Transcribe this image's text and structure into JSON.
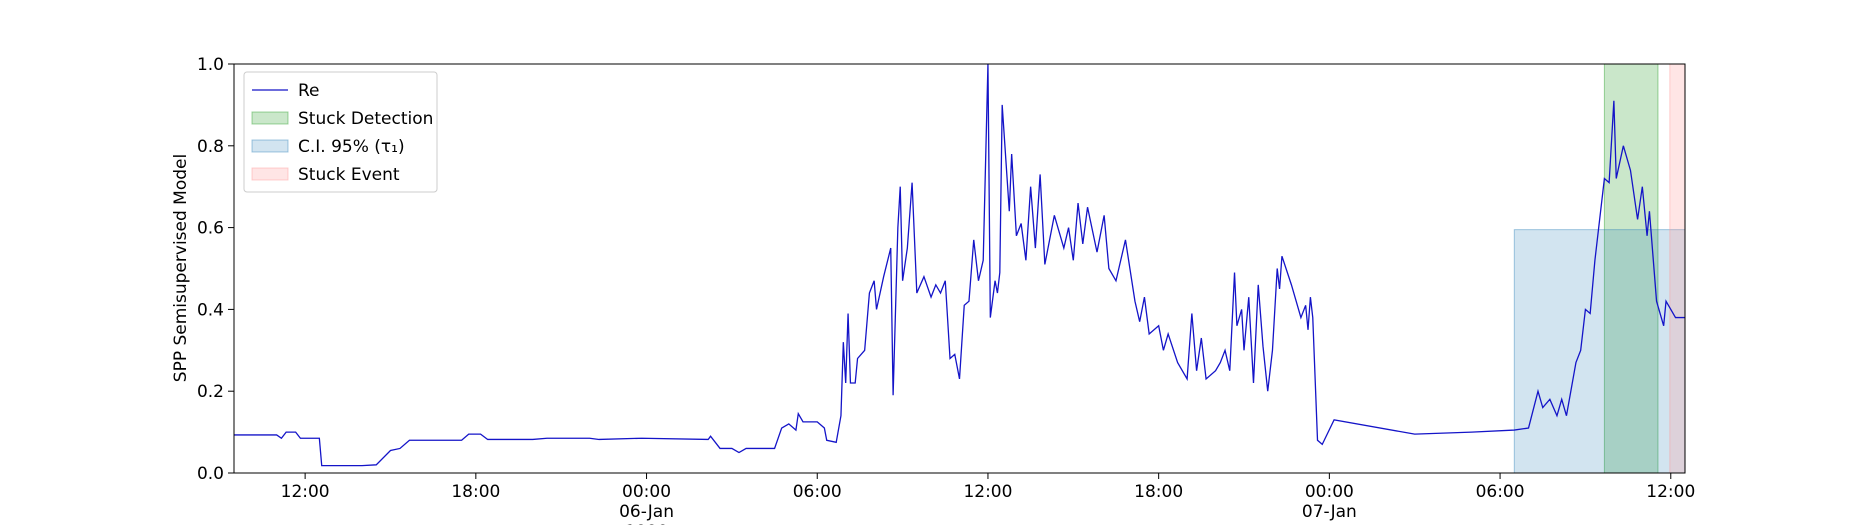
{
  "chart_data": {
    "type": "line",
    "ylabel": "SPP Semisupervised Model",
    "x": [
      "1990-01-05T09:30",
      "1990-01-05T11:00",
      "1990-01-05T11:10",
      "1990-01-05T11:20",
      "1990-01-05T11:40",
      "1990-01-05T11:50",
      "1990-01-05T12:30",
      "1990-01-05T12:35",
      "1990-01-05T14:00",
      "1990-01-05T14:30",
      "1990-01-05T15:00",
      "1990-01-05T15:20",
      "1990-01-05T15:40",
      "1990-01-05T17:30",
      "1990-01-05T17:45",
      "1990-01-05T18:10",
      "1990-01-05T18:25",
      "1990-01-05T20:00",
      "1990-01-05T20:30",
      "1990-01-05T22:00",
      "1990-01-05T22:20",
      "1990-01-05T23:50",
      "1990-01-06T02:10",
      "1990-01-06T02:15",
      "1990-01-06T02:35",
      "1990-01-06T03:00",
      "1990-01-06T03:15",
      "1990-01-06T03:30",
      "1990-01-06T04:30",
      "1990-01-06T04:45",
      "1990-01-06T05:00",
      "1990-01-06T05:15",
      "1990-01-06T05:20",
      "1990-01-06T05:30",
      "1990-01-06T06:00",
      "1990-01-06T06:15",
      "1990-01-06T06:20",
      "1990-01-06T06:40",
      "1990-01-06T06:50",
      "1990-01-06T06:55",
      "1990-01-06T07:00",
      "1990-01-06T07:05",
      "1990-01-06T07:10",
      "1990-01-06T07:20",
      "1990-01-06T07:25",
      "1990-01-06T07:40",
      "1990-01-06T07:50",
      "1990-01-06T08:00",
      "1990-01-06T08:05",
      "1990-01-06T08:20",
      "1990-01-06T08:35",
      "1990-01-06T08:40",
      "1990-01-06T08:50",
      "1990-01-06T08:55",
      "1990-01-06T09:00",
      "1990-01-06T09:10",
      "1990-01-06T09:20",
      "1990-01-06T09:30",
      "1990-01-06T09:45",
      "1990-01-06T10:00",
      "1990-01-06T10:10",
      "1990-01-06T10:20",
      "1990-01-06T10:30",
      "1990-01-06T10:40",
      "1990-01-06T10:50",
      "1990-01-06T11:00",
      "1990-01-06T11:10",
      "1990-01-06T11:20",
      "1990-01-06T11:30",
      "1990-01-06T11:40",
      "1990-01-06T11:50",
      "1990-01-06T12:00",
      "1990-01-06T12:05",
      "1990-01-06T12:15",
      "1990-01-06T12:20",
      "1990-01-06T12:25",
      "1990-01-06T12:30",
      "1990-01-06T12:45",
      "1990-01-06T12:50",
      "1990-01-06T13:00",
      "1990-01-06T13:10",
      "1990-01-06T13:20",
      "1990-01-06T13:30",
      "1990-01-06T13:40",
      "1990-01-06T13:50",
      "1990-01-06T14:00",
      "1990-01-06T14:20",
      "1990-01-06T14:40",
      "1990-01-06T14:50",
      "1990-01-06T15:00",
      "1990-01-06T15:10",
      "1990-01-06T15:20",
      "1990-01-06T15:30",
      "1990-01-06T15:50",
      "1990-01-06T16:05",
      "1990-01-06T16:15",
      "1990-01-06T16:30",
      "1990-01-06T16:50",
      "1990-01-06T17:10",
      "1990-01-06T17:20",
      "1990-01-06T17:30",
      "1990-01-06T17:40",
      "1990-01-06T18:00",
      "1990-01-06T18:10",
      "1990-01-06T18:20",
      "1990-01-06T18:40",
      "1990-01-06T19:00",
      "1990-01-06T19:10",
      "1990-01-06T19:20",
      "1990-01-06T19:30",
      "1990-01-06T19:40",
      "1990-01-06T20:00",
      "1990-01-06T20:10",
      "1990-01-06T20:20",
      "1990-01-06T20:30",
      "1990-01-06T20:40",
      "1990-01-06T20:45",
      "1990-01-06T20:55",
      "1990-01-06T21:00",
      "1990-01-06T21:10",
      "1990-01-06T21:20",
      "1990-01-06T21:30",
      "1990-01-06T21:40",
      "1990-01-06T21:50",
      "1990-01-06T22:00",
      "1990-01-06T22:10",
      "1990-01-06T22:15",
      "1990-01-06T22:20",
      "1990-01-06T22:40",
      "1990-01-06T22:50",
      "1990-01-06T23:00",
      "1990-01-06T23:10",
      "1990-01-06T23:15",
      "1990-01-06T23:20",
      "1990-01-06T23:25",
      "1990-01-06T23:35",
      "1990-01-06T23:45",
      "1990-01-07T00:10",
      "1990-01-07T03:00",
      "1990-01-07T05:00",
      "1990-01-07T06:30",
      "1990-01-07T07:00",
      "1990-01-07T07:20",
      "1990-01-07T07:30",
      "1990-01-07T07:45",
      "1990-01-07T08:00",
      "1990-01-07T08:10",
      "1990-01-07T08:20",
      "1990-01-07T08:40",
      "1990-01-07T08:50",
      "1990-01-07T09:00",
      "1990-01-07T09:10",
      "1990-01-07T09:20",
      "1990-01-07T09:40",
      "1990-01-07T09:50",
      "1990-01-07T10:00",
      "1990-01-07T10:05",
      "1990-01-07T10:20",
      "1990-01-07T10:35",
      "1990-01-07T10:50",
      "1990-01-07T11:00",
      "1990-01-07T11:10",
      "1990-01-07T11:15",
      "1990-01-07T11:30",
      "1990-01-07T11:45",
      "1990-01-07T11:50",
      "1990-01-07T12:10",
      "1990-01-07T12:30"
    ],
    "series": [
      {
        "name": "Re",
        "color": "#1414c8",
        "values": [
          0.093,
          0.093,
          0.085,
          0.1,
          0.1,
          0.085,
          0.085,
          0.018,
          0.018,
          0.02,
          0.055,
          0.06,
          0.08,
          0.08,
          0.095,
          0.095,
          0.082,
          0.082,
          0.085,
          0.085,
          0.082,
          0.085,
          0.082,
          0.09,
          0.06,
          0.06,
          0.05,
          0.06,
          0.06,
          0.11,
          0.12,
          0.105,
          0.145,
          0.125,
          0.125,
          0.11,
          0.08,
          0.075,
          0.14,
          0.32,
          0.22,
          0.39,
          0.22,
          0.22,
          0.28,
          0.3,
          0.44,
          0.47,
          0.4,
          0.48,
          0.55,
          0.19,
          0.6,
          0.7,
          0.47,
          0.55,
          0.71,
          0.44,
          0.48,
          0.43,
          0.46,
          0.44,
          0.47,
          0.28,
          0.29,
          0.23,
          0.41,
          0.42,
          0.57,
          0.47,
          0.52,
          1.0,
          0.38,
          0.47,
          0.44,
          0.49,
          0.9,
          0.64,
          0.78,
          0.58,
          0.61,
          0.52,
          0.7,
          0.55,
          0.73,
          0.51,
          0.63,
          0.55,
          0.6,
          0.52,
          0.66,
          0.56,
          0.65,
          0.54,
          0.63,
          0.5,
          0.47,
          0.57,
          0.42,
          0.37,
          0.43,
          0.34,
          0.36,
          0.3,
          0.34,
          0.27,
          0.23,
          0.39,
          0.25,
          0.33,
          0.23,
          0.25,
          0.27,
          0.3,
          0.25,
          0.49,
          0.36,
          0.4,
          0.3,
          0.43,
          0.22,
          0.46,
          0.31,
          0.2,
          0.3,
          0.5,
          0.45,
          0.53,
          0.46,
          0.42,
          0.38,
          0.41,
          0.35,
          0.43,
          0.38,
          0.08,
          0.07,
          0.13,
          0.095,
          0.1,
          0.105,
          0.11,
          0.2,
          0.16,
          0.18,
          0.14,
          0.18,
          0.14,
          0.27,
          0.3,
          0.4,
          0.39,
          0.52,
          0.72,
          0.71,
          0.91,
          0.72,
          0.8,
          0.74,
          0.62,
          0.7,
          0.58,
          0.64,
          0.42,
          0.36,
          0.42,
          0.38,
          0.38
        ]
      }
    ],
    "spans": [
      {
        "name": "Stuck Detection",
        "color": "#2ca02c",
        "alpha": 0.25,
        "x": [
          "1990-01-07T09:40",
          "1990-01-07T11:33"
        ],
        "y": [
          0,
          1
        ]
      },
      {
        "name": "C.I. 95% (τ₁)",
        "color": "#1f77b4",
        "alpha": 0.2,
        "x": [
          "1990-01-07T06:30",
          "1990-01-07T12:30"
        ],
        "y": [
          0,
          0.595
        ]
      },
      {
        "name": "Stuck Event",
        "color": "#ff9999",
        "alpha": 0.25,
        "x": [
          "1990-01-07T11:58",
          "1990-01-07T12:30"
        ],
        "y": [
          0,
          1
        ]
      }
    ],
    "xlim": [
      "1990-01-05T09:30",
      "1990-01-07T12:30"
    ],
    "xticks": [
      {
        "value": "1990-01-05T12:00",
        "label": "12:00"
      },
      {
        "value": "1990-01-05T18:00",
        "label": "18:00"
      },
      {
        "value": "1990-01-06T00:00",
        "label": "00:00\n06-Jan\n1990"
      },
      {
        "value": "1990-01-06T06:00",
        "label": "06:00"
      },
      {
        "value": "1990-01-06T12:00",
        "label": "12:00"
      },
      {
        "value": "1990-01-06T18:00",
        "label": "18:00"
      },
      {
        "value": "1990-01-07T00:00",
        "label": "00:00\n07-Jan"
      },
      {
        "value": "1990-01-07T06:00",
        "label": "06:00"
      },
      {
        "value": "1990-01-07T12:00",
        "label": "12:00"
      }
    ],
    "ylim": [
      0,
      1
    ],
    "yticks": [
      {
        "value": 0,
        "label": "0.0"
      },
      0.2,
      0.4,
      0.6,
      0.8,
      {
        "value": 1,
        "label": "1.0"
      }
    ],
    "legend": "upper left",
    "grid": false
  }
}
